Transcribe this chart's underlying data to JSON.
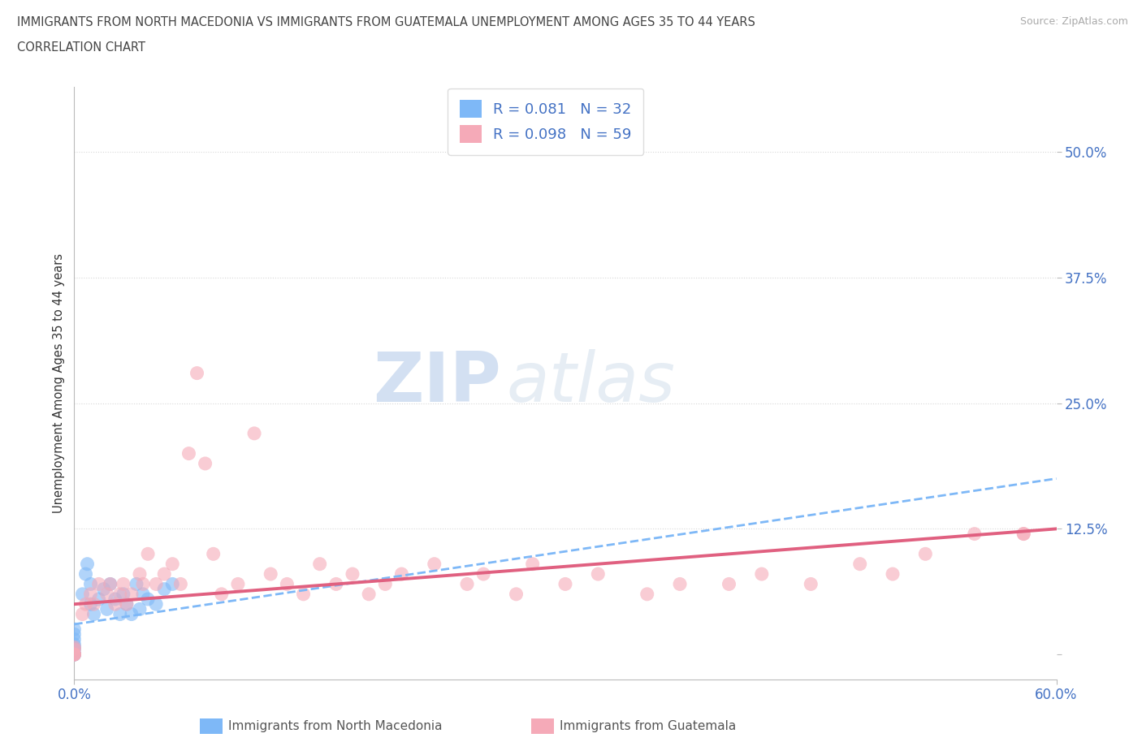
{
  "title_line1": "IMMIGRANTS FROM NORTH MACEDONIA VS IMMIGRANTS FROM GUATEMALA UNEMPLOYMENT AMONG AGES 35 TO 44 YEARS",
  "title_line2": "CORRELATION CHART",
  "source_text": "Source: ZipAtlas.com",
  "ylabel_text": "Unemployment Among Ages 35 to 44 years",
  "xlim": [
    0.0,
    0.6
  ],
  "ylim": [
    -0.025,
    0.565
  ],
  "ytick_positions": [
    0.0,
    0.125,
    0.25,
    0.375,
    0.5
  ],
  "ytick_labels": [
    "",
    "12.5%",
    "25.0%",
    "37.5%",
    "50.0%"
  ],
  "color_macedonia": "#7eb8f7",
  "color_macedonia_line": "#7eb8f7",
  "color_guatemala": "#f5aab8",
  "color_guatemala_line": "#e06080",
  "color_axis": "#4472c4",
  "title_color": "#444444",
  "grid_color": "#d8d8d8",
  "R1": "0.081",
  "N1": "32",
  "R2": "0.098",
  "N2": "59",
  "legend_label1": "Immigrants from North Macedonia",
  "legend_label2": "Immigrants from Guatemala",
  "watermark1": "ZIP",
  "watermark2": "atlas",
  "mac_line_start_y": 0.03,
  "mac_line_end_y": 0.175,
  "guat_line_start_y": 0.05,
  "guat_line_end_y": 0.125,
  "macedonia_x": [
    0.0,
    0.0,
    0.0,
    0.0,
    0.0,
    0.0,
    0.0,
    0.0,
    0.0,
    0.0,
    0.005,
    0.007,
    0.008,
    0.01,
    0.01,
    0.012,
    0.015,
    0.018,
    0.02,
    0.022,
    0.025,
    0.028,
    0.03,
    0.032,
    0.035,
    0.038,
    0.04,
    0.042,
    0.045,
    0.05,
    0.055,
    0.06
  ],
  "macedonia_y": [
    0.0,
    0.0,
    0.0,
    0.0,
    0.005,
    0.007,
    0.01,
    0.015,
    0.02,
    0.025,
    0.06,
    0.08,
    0.09,
    0.05,
    0.07,
    0.04,
    0.055,
    0.065,
    0.045,
    0.07,
    0.055,
    0.04,
    0.06,
    0.05,
    0.04,
    0.07,
    0.045,
    0.06,
    0.055,
    0.05,
    0.065,
    0.07
  ],
  "guatemala_x": [
    0.0,
    0.0,
    0.0,
    0.0,
    0.0,
    0.0,
    0.005,
    0.007,
    0.01,
    0.012,
    0.015,
    0.02,
    0.022,
    0.025,
    0.028,
    0.03,
    0.032,
    0.035,
    0.04,
    0.042,
    0.045,
    0.05,
    0.055,
    0.06,
    0.065,
    0.07,
    0.075,
    0.08,
    0.085,
    0.09,
    0.1,
    0.11,
    0.12,
    0.13,
    0.14,
    0.15,
    0.16,
    0.17,
    0.18,
    0.19,
    0.2,
    0.22,
    0.24,
    0.25,
    0.27,
    0.28,
    0.3,
    0.32,
    0.35,
    0.37,
    0.4,
    0.42,
    0.45,
    0.48,
    0.5,
    0.52,
    0.55,
    0.58,
    0.58
  ],
  "guatemala_y": [
    0.0,
    0.0,
    0.0,
    0.0,
    0.005,
    0.007,
    0.04,
    0.05,
    0.06,
    0.05,
    0.07,
    0.06,
    0.07,
    0.05,
    0.06,
    0.07,
    0.05,
    0.06,
    0.08,
    0.07,
    0.1,
    0.07,
    0.08,
    0.09,
    0.07,
    0.2,
    0.28,
    0.19,
    0.1,
    0.06,
    0.07,
    0.22,
    0.08,
    0.07,
    0.06,
    0.09,
    0.07,
    0.08,
    0.06,
    0.07,
    0.08,
    0.09,
    0.07,
    0.08,
    0.06,
    0.09,
    0.07,
    0.08,
    0.06,
    0.07,
    0.07,
    0.08,
    0.07,
    0.09,
    0.08,
    0.1,
    0.12,
    0.12,
    0.12
  ]
}
